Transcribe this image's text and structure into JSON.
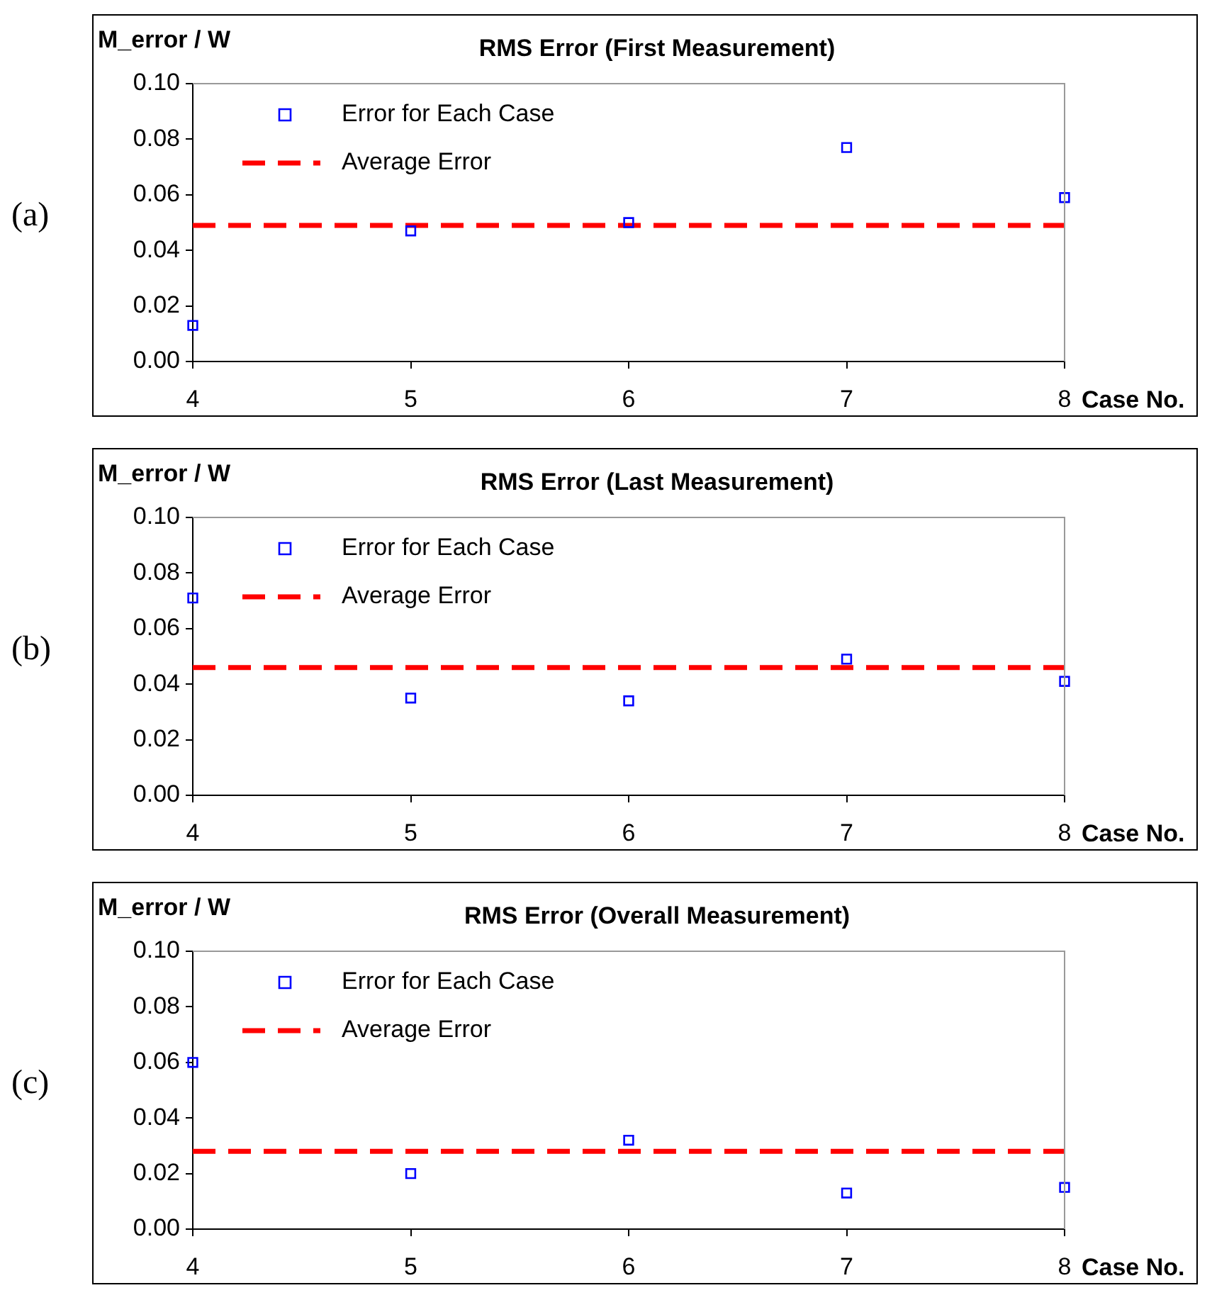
{
  "chart_data": [
    {
      "type": "scatter",
      "title": "RMS Error (First Measurement)",
      "xlabel": "Case No.",
      "ylabel": "M_error / W",
      "annotations": [
        "(a)"
      ],
      "x": [
        4,
        5,
        6,
        7,
        8
      ],
      "legend": "top left",
      "xlim": [
        4,
        8
      ],
      "xticks": [
        4,
        5,
        6,
        7,
        8
      ],
      "ylim": [
        0,
        0.1
      ],
      "yticks": [
        {
          "value": 0,
          "label": "0.00"
        },
        {
          "value": 0.02,
          "label": "0.02"
        },
        {
          "value": 0.04,
          "label": "0.04"
        },
        {
          "value": 0.06,
          "label": "0.06"
        },
        {
          "value": 0.08,
          "label": "0.08"
        },
        {
          "value": 0.1,
          "label": "0.10"
        }
      ],
      "series": [
        {
          "name": "Error for Each Case",
          "color": "#0000ff",
          "marker": "square",
          "values": [
            0.013,
            0.047,
            0.05,
            0.077,
            0.059
          ]
        },
        {
          "name": "Average Error",
          "type": "line",
          "color": "#ff0000",
          "line_style": "dashed",
          "marker": "none",
          "values": [
            0.049,
            0.049,
            0.049,
            0.049,
            0.049
          ]
        }
      ]
    },
    {
      "type": "scatter",
      "title": "RMS Error (Last Measurement)",
      "xlabel": "Case No.",
      "ylabel": "M_error / W",
      "annotations": [
        "(b)"
      ],
      "x": [
        4,
        5,
        6,
        7,
        8
      ],
      "legend": "top left",
      "xlim": [
        4,
        8
      ],
      "xticks": [
        4,
        5,
        6,
        7,
        8
      ],
      "ylim": [
        0,
        0.1
      ],
      "yticks": [
        {
          "value": 0,
          "label": "0.00"
        },
        {
          "value": 0.02,
          "label": "0.02"
        },
        {
          "value": 0.04,
          "label": "0.04"
        },
        {
          "value": 0.06,
          "label": "0.06"
        },
        {
          "value": 0.08,
          "label": "0.08"
        },
        {
          "value": 0.1,
          "label": "0.10"
        }
      ],
      "series": [
        {
          "name": "Error for Each Case",
          "color": "#0000ff",
          "marker": "square",
          "values": [
            0.071,
            0.035,
            0.034,
            0.049,
            0.041
          ]
        },
        {
          "name": "Average Error",
          "type": "line",
          "color": "#ff0000",
          "line_style": "dashed",
          "marker": "none",
          "values": [
            0.046,
            0.046,
            0.046,
            0.046,
            0.046
          ]
        }
      ]
    },
    {
      "type": "scatter",
      "title": "RMS Error (Overall Measurement)",
      "xlabel": "Case No.",
      "ylabel": "M_error / W",
      "annotations": [
        "(c)"
      ],
      "x": [
        4,
        5,
        6,
        7,
        8
      ],
      "legend": "top left",
      "xlim": [
        4,
        8
      ],
      "xticks": [
        4,
        5,
        6,
        7,
        8
      ],
      "ylim": [
        0,
        0.1
      ],
      "yticks": [
        {
          "value": 0,
          "label": "0.00"
        },
        {
          "value": 0.02,
          "label": "0.02"
        },
        {
          "value": 0.04,
          "label": "0.04"
        },
        {
          "value": 0.06,
          "label": "0.06"
        },
        {
          "value": 0.08,
          "label": "0.08"
        },
        {
          "value": 0.1,
          "label": "0.10"
        }
      ],
      "series": [
        {
          "name": "Error for Each Case",
          "color": "#0000ff",
          "marker": "square",
          "values": [
            0.06,
            0.02,
            0.032,
            0.013,
            0.015
          ]
        },
        {
          "name": "Average Error",
          "type": "line",
          "color": "#ff0000",
          "line_style": "dashed",
          "marker": "none",
          "values": [
            0.028,
            0.028,
            0.028,
            0.028,
            0.028
          ]
        }
      ]
    }
  ]
}
